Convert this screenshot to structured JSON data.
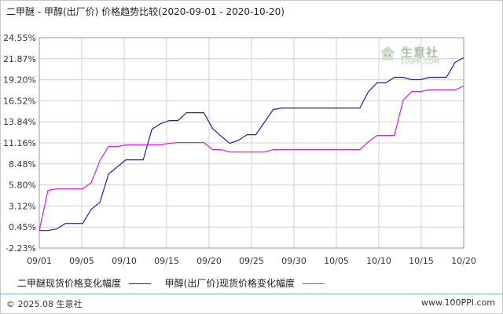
{
  "title": "二甲醚 - 甲醇(出厂价) 价格趋势比较(2020-09-01 - 2020-10-20)",
  "watermark": {
    "name": "生意社",
    "url": "100PPI.COM",
    "icon": "house-logo-icon"
  },
  "footer": {
    "left": "© 2025.08 生意社",
    "right": "www.100PPI.com"
  },
  "colors": {
    "series1": "#1f1fb4",
    "series2": "#e01ee0",
    "axis": "#999999",
    "grid": "#d0d0d0"
  },
  "chart_data": {
    "type": "line",
    "title": "二甲醚 - 甲醇(出厂价) 价格趋势比较(2020-09-01 - 2020-10-20)",
    "x_ticks": [
      "09/01",
      "09/05",
      "09/10",
      "09/15",
      "09/20",
      "09/25",
      "09/30",
      "10/05",
      "10/10",
      "10/15",
      "10/20"
    ],
    "y_ticks": [
      "24.55%",
      "21.87%",
      "19.20%",
      "16.52%",
      "13.84%",
      "11.16%",
      "8.48%",
      "5.80%",
      "3.12%",
      "0.45%",
      "-2.23%"
    ],
    "ylim": [
      -2.23,
      24.55
    ],
    "grid": true,
    "legend_position": "bottom",
    "series": [
      {
        "name": "二甲醚现货价格变化幅度",
        "x": [
          "09/01",
          "09/02",
          "09/03",
          "09/04",
          "09/05",
          "09/06",
          "09/07",
          "09/08",
          "09/09",
          "09/10",
          "09/11",
          "09/12",
          "09/13",
          "09/14",
          "09/15",
          "09/16",
          "09/17",
          "09/18",
          "09/19",
          "09/20",
          "09/21",
          "09/22",
          "09/23",
          "09/24",
          "09/25",
          "09/26",
          "09/27",
          "09/28",
          "09/29",
          "09/30",
          "10/01",
          "10/02",
          "10/03",
          "10/04",
          "10/05",
          "10/06",
          "10/07",
          "10/08",
          "10/09",
          "10/10",
          "10/11",
          "10/12",
          "10/13",
          "10/14",
          "10/15",
          "10/16",
          "10/17",
          "10/18",
          "10/19",
          "10/20"
        ],
        "values": [
          0,
          0,
          0.2,
          0.9,
          0.9,
          0.9,
          2.7,
          3.6,
          7.2,
          8.1,
          9.0,
          9.0,
          9.0,
          12.9,
          13.6,
          14.0,
          14.0,
          15.0,
          15.0,
          15.0,
          13.0,
          12.0,
          11.1,
          11.5,
          12.2,
          12.2,
          13.8,
          15.4,
          15.6,
          15.6,
          15.6,
          15.6,
          15.6,
          15.6,
          15.6,
          15.6,
          15.6,
          15.6,
          17.7,
          18.8,
          18.8,
          19.5,
          19.5,
          19.2,
          19.2,
          19.5,
          19.5,
          19.5,
          21.4,
          22.0
        ]
      },
      {
        "name": "甲醇(出厂价)现货价格变化幅度",
        "x": [
          "09/01",
          "09/02",
          "09/03",
          "09/04",
          "09/05",
          "09/06",
          "09/07",
          "09/08",
          "09/09",
          "09/10",
          "09/11",
          "09/12",
          "09/13",
          "09/14",
          "09/15",
          "09/16",
          "09/17",
          "09/18",
          "09/19",
          "09/20",
          "09/21",
          "09/22",
          "09/23",
          "09/24",
          "09/25",
          "09/26",
          "09/27",
          "09/28",
          "09/29",
          "09/30",
          "10/01",
          "10/02",
          "10/03",
          "10/04",
          "10/05",
          "10/06",
          "10/07",
          "10/08",
          "10/09",
          "10/10",
          "10/11",
          "10/12",
          "10/13",
          "10/14",
          "10/15",
          "10/16",
          "10/17",
          "10/18",
          "10/19",
          "10/20"
        ],
        "values": [
          0,
          5.1,
          5.3,
          5.3,
          5.3,
          5.3,
          6.1,
          8.9,
          10.7,
          10.7,
          10.9,
          10.9,
          10.9,
          10.9,
          10.9,
          11.1,
          11.2,
          11.2,
          11.2,
          11.2,
          10.3,
          10.3,
          10.0,
          10.0,
          10.0,
          10.0,
          10.0,
          10.3,
          10.3,
          10.3,
          10.3,
          10.3,
          10.3,
          10.3,
          10.3,
          10.3,
          10.3,
          10.3,
          11.3,
          12.1,
          12.1,
          12.1,
          16.6,
          17.7,
          17.7,
          17.9,
          17.9,
          17.9,
          17.9,
          18.4
        ]
      }
    ]
  }
}
